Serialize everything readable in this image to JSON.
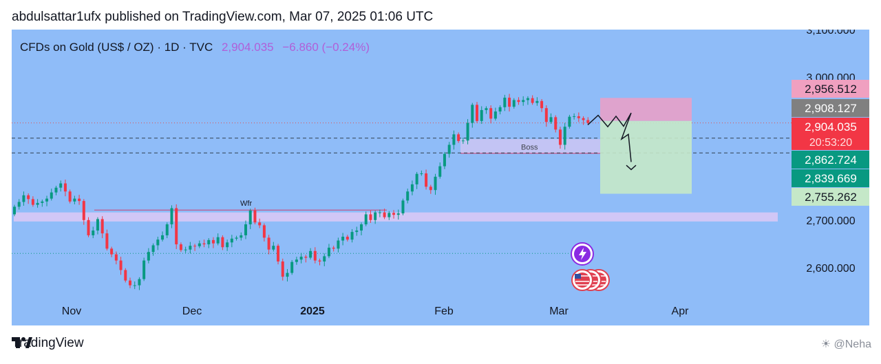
{
  "header": {
    "publisher_line": "abdulsattar1ufx published on TradingView.com, Mar 07, 2025 01:06 UTC"
  },
  "symbol": {
    "name": "CFDs on Gold (US$ / OZ) · 1D · TVC",
    "price": "2,904.035",
    "change": "−6.860 (−0.24%)"
  },
  "footer": {
    "brand": "TradingView",
    "watermark": "☀ @Neha"
  },
  "colors": {
    "up": "#089981",
    "down": "#f23645",
    "background": "#8fbcf8",
    "zone": "#d8c8f5",
    "stop": "#e8a0c8",
    "target": "#c5e8c8"
  },
  "chart_data": {
    "type": "candlestick",
    "title": "CFDs on Gold (US$ / OZ) · 1D · TVC",
    "x_ticks": [
      "Nov",
      "Dec",
      "2025",
      "Feb",
      "Mar",
      "Apr"
    ],
    "y_ticks": [
      "3,100.000",
      "3,000.000",
      "2,700.000",
      "2,600.000"
    ],
    "ylim": [
      2540,
      3110
    ],
    "price_labels": [
      {
        "value": "2,956.512",
        "kind": "stop"
      },
      {
        "value": "2,908.127",
        "kind": "gray"
      },
      {
        "value": "2,904.035",
        "kind": "last",
        "countdown": "20:53:20"
      },
      {
        "value": "2,862.724",
        "kind": "up"
      },
      {
        "value": "2,839.669",
        "kind": "up"
      },
      {
        "value": "2,755.262",
        "kind": "target"
      }
    ],
    "annotations": [
      "Wfr",
      "Boss"
    ],
    "closes": [
      2728,
      2738,
      2752,
      2744,
      2732,
      2736,
      2739,
      2745,
      2758,
      2768,
      2777,
      2760,
      2739,
      2745,
      2740,
      2700,
      2668,
      2678,
      2702,
      2672,
      2640,
      2628,
      2615,
      2595,
      2573,
      2563,
      2563,
      2576,
      2615,
      2633,
      2647,
      2659,
      2668,
      2691,
      2725,
      2649,
      2637,
      2638,
      2646,
      2645,
      2651,
      2649,
      2658,
      2651,
      2664,
      2643,
      2653,
      2661,
      2663,
      2668,
      2691,
      2720,
      2695,
      2689,
      2663,
      2638,
      2646,
      2613,
      2581,
      2589,
      2612,
      2617,
      2623,
      2621,
      2635,
      2615,
      2613,
      2624,
      2642,
      2640,
      2657,
      2665,
      2659,
      2675,
      2678,
      2691,
      2712,
      2700,
      2716,
      2716,
      2706,
      2715,
      2711,
      2714,
      2741,
      2760,
      2775,
      2797,
      2798,
      2770,
      2763,
      2791,
      2813,
      2839,
      2858,
      2880,
      2866,
      2867,
      2904,
      2942,
      2908,
      2931,
      2935,
      2913,
      2928,
      2937,
      2957,
      2938,
      2952,
      2948,
      2952,
      2956,
      2946,
      2950,
      2935,
      2906,
      2916,
      2890,
      2858,
      2896,
      2917,
      2918,
      2914,
      2910,
      2904
    ],
    "trade_box": {
      "entry": 2908.127,
      "stop": 2956.512,
      "target": 2755.262
    }
  }
}
